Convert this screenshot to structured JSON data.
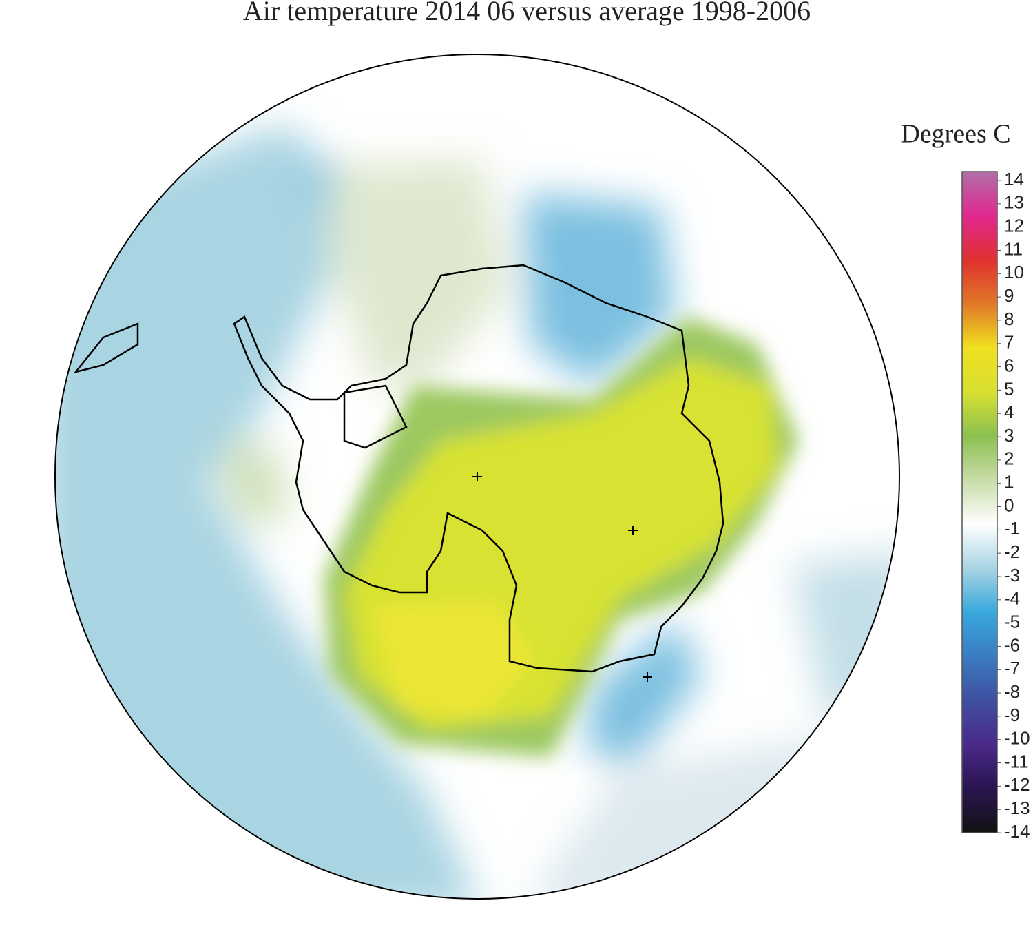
{
  "title": "Air temperature 2014 06 versus average 1998-2006",
  "colorbar": {
    "title": "Degrees C",
    "range": [
      -14,
      14
    ],
    "ticks": [
      -14,
      -13,
      -12,
      -11,
      -10,
      -9,
      -8,
      -7,
      -6,
      -5,
      -4,
      -3,
      -2,
      -1,
      0,
      1,
      2,
      3,
      4,
      5,
      6,
      7,
      8,
      9,
      10,
      11,
      12,
      13,
      14
    ],
    "colors": [
      "#121212",
      "#2a1450",
      "#4a2a8a",
      "#3f4fa0",
      "#3a7cc0",
      "#39a8dc",
      "#a8d4e4",
      "#ffffff",
      "#c8dca8",
      "#8cc050",
      "#d8e030",
      "#f0e020",
      "#e07828",
      "#e03030",
      "#e02890",
      "#b070a8"
    ]
  }
}
